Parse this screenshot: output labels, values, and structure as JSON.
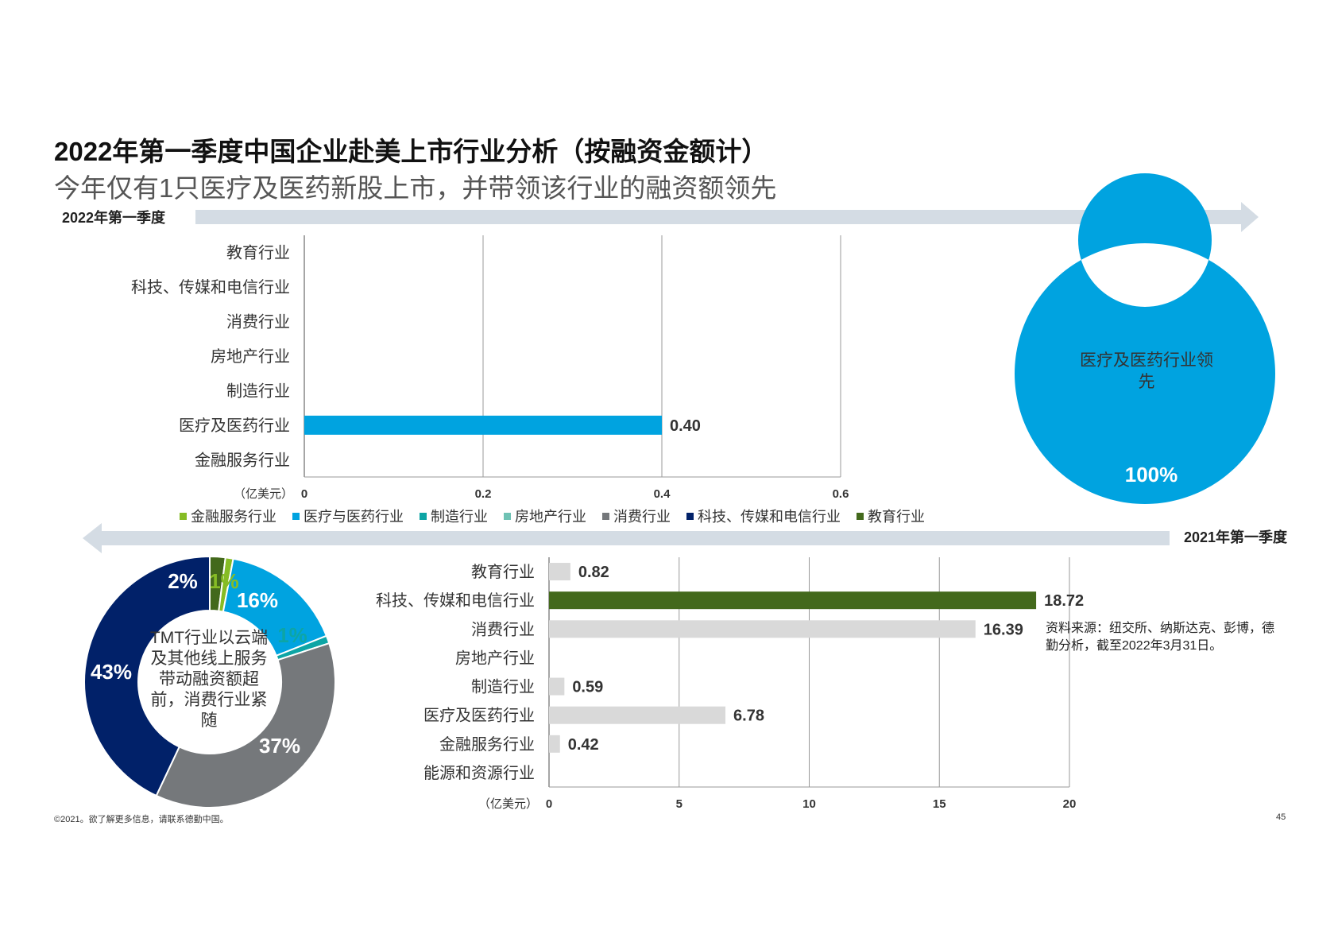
{
  "title": "2022年第一季度中国企业赴美上市行业分析（按融资金额计）",
  "subtitle": "今年仅有1只医疗及医药新股上市，并带领该行业的融资额领先",
  "period_2022": "2022年第一季度",
  "period_2021": "2021年第一季度",
  "colors": {
    "healthcare": "#00A3E0",
    "financial": "#86BC25",
    "manufacturing": "#0DA5A5",
    "realestate": "#6FC2B4",
    "consumer": "#75787B",
    "tmt": "#012169",
    "education": "#43691C",
    "gray_bar": "#D9D9D9",
    "arrow": "#D0D8E0"
  },
  "legend": [
    {
      "label": "金融服务行业",
      "color": "#86BC25"
    },
    {
      "label": "医疗与医药行业",
      "color": "#00A3E0"
    },
    {
      "label": "制造行业",
      "color": "#0DA5A5"
    },
    {
      "label": "房地产行业",
      "color": "#6FC2B4"
    },
    {
      "label": "消费行业",
      "color": "#75787B"
    },
    {
      "label": "科技、传媒和电信行业",
      "color": "#012169"
    },
    {
      "label": "教育行业",
      "color": "#43691C"
    }
  ],
  "donut_2022_center": "医疗及医药行业领先",
  "donut_2021_center": "TMT行业以云端及其他线上服务带动融资额超前，消费行业紧随",
  "source": "资料来源：纽交所、纳斯达克、彭博，德勤分析，截至2022年3月31日。",
  "footer": "©2021。欲了解更多信息，请联系德勤中国。",
  "page_number": "45",
  "chart_data": [
    {
      "type": "bar",
      "orientation": "horizontal",
      "period": "2022年第一季度",
      "categories": [
        "教育行业",
        "科技、传媒和电信行业",
        "消费行业",
        "房地产行业",
        "制造行业",
        "医疗及医药行业",
        "金融服务行业"
      ],
      "values": [
        null,
        null,
        null,
        null,
        null,
        0.4,
        null
      ],
      "value_labels": [
        "",
        "",
        "",
        "",
        "",
        "0.40",
        ""
      ],
      "colors": [
        "#D9D9D9",
        "#D9D9D9",
        "#D9D9D9",
        "#D9D9D9",
        "#D9D9D9",
        "#00A3E0",
        "#D9D9D9"
      ],
      "xlabel": "（亿美元）",
      "xlim": [
        0,
        0.6
      ],
      "xticks": [
        0,
        0.2,
        0.4,
        0.6
      ],
      "xtick_labels": [
        "0",
        "0.2",
        "0.4",
        "0.6"
      ],
      "grid": true
    },
    {
      "type": "pie",
      "style": "donut",
      "period": "2022年第一季度",
      "slices": [
        {
          "label": "医疗与医药行业",
          "value": 100,
          "text": "100%",
          "color": "#00A3E0"
        }
      ]
    },
    {
      "type": "bar",
      "orientation": "horizontal",
      "period": "2021年第一季度",
      "categories": [
        "教育行业",
        "科技、传媒和电信行业",
        "消费行业",
        "房地产行业",
        "制造行业",
        "医疗及医药行业",
        "金融服务行业",
        "能源和资源行业"
      ],
      "values": [
        0.82,
        18.72,
        16.39,
        null,
        0.59,
        6.78,
        0.42,
        null
      ],
      "value_labels": [
        "0.82",
        "18.72",
        "16.39",
        "",
        "0.59",
        "6.78",
        "0.42",
        ""
      ],
      "colors": [
        "#D9D9D9",
        "#43691C",
        "#D9D9D9",
        "#D9D9D9",
        "#D9D9D9",
        "#D9D9D9",
        "#D9D9D9",
        "#D9D9D9"
      ],
      "xlabel": "（亿美元）",
      "xlim": [
        0,
        20
      ],
      "xticks": [
        0,
        5,
        10,
        15,
        20
      ],
      "xtick_labels": [
        "0",
        "5",
        "10",
        "15",
        "20"
      ],
      "grid": true
    },
    {
      "type": "pie",
      "style": "donut",
      "period": "2021年第一季度",
      "slices": [
        {
          "label": "教育行业",
          "value": 2,
          "text": "2%",
          "color": "#43691C"
        },
        {
          "label": "金融服务行业",
          "value": 1,
          "text": "1%",
          "color": "#86BC25"
        },
        {
          "label": "医疗与医药行业",
          "value": 16,
          "text": "16%",
          "color": "#00A3E0"
        },
        {
          "label": "制造行业",
          "value": 1,
          "text": "1%",
          "color": "#0DA5A5"
        },
        {
          "label": "消费行业",
          "value": 37,
          "text": "37%",
          "color": "#75787B"
        },
        {
          "label": "科技、传媒和电信行业",
          "value": 43,
          "text": "43%",
          "color": "#012169"
        }
      ]
    }
  ]
}
